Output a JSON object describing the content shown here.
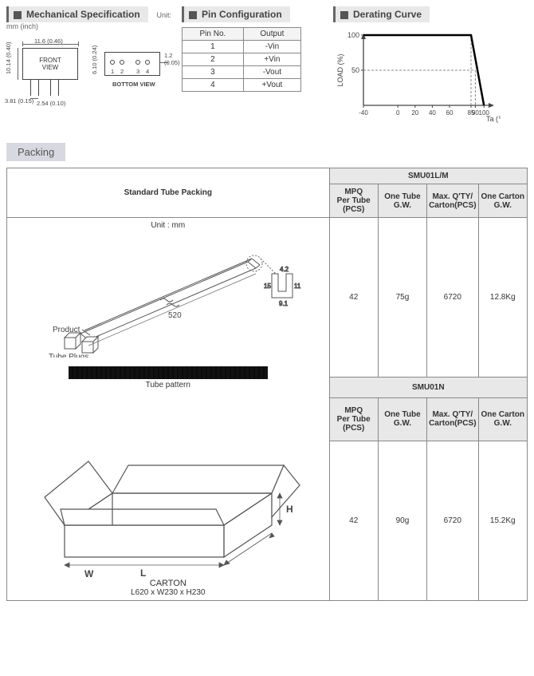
{
  "sections": {
    "mech_spec": "Mechanical Specification",
    "pin_config": "Pin Configuration",
    "derating": "Derating Curve",
    "packing": "Packing"
  },
  "mech": {
    "unit_label": "Unit: mm (inch)",
    "front_label": "FRONT\nVIEW",
    "bottom_label": "BOTTOM VIEW",
    "dims": {
      "width": "11.6 (0.46)",
      "height": "10.14 (0.40)",
      "pin_drop": "3.81 (0.15)",
      "pin_pitch": "2.54 (0.10)",
      "thickness": "6.10 (0.24)",
      "lead_dia": "1.2 (0.05)"
    },
    "pin_numbers": [
      "1",
      "2",
      "3",
      "4"
    ]
  },
  "pin_table": {
    "headers": [
      "Pin No.",
      "Output"
    ],
    "rows": [
      [
        "1",
        "-Vin"
      ],
      [
        "2",
        "+Vin"
      ],
      [
        "3",
        "-Vout"
      ],
      [
        "4",
        "+Vout"
      ]
    ]
  },
  "derating_chart": {
    "type": "line",
    "ylabel": "LOAD (%)",
    "xlabel": "Ta (℃)",
    "ylim": [
      0,
      100
    ],
    "xlim": [
      -40,
      110
    ],
    "xticks": [
      -40,
      0,
      20,
      40,
      60,
      85,
      90,
      100
    ],
    "yticks": [
      50,
      100
    ],
    "dash_vx": [
      85,
      90
    ],
    "dash_hy": 50,
    "line_points": [
      [
        -40,
        100
      ],
      [
        85,
        100
      ],
      [
        100,
        0
      ]
    ],
    "line_color": "#000000",
    "line_width": 2.5,
    "dash_color": "#888888",
    "axis_color": "#444444",
    "label_fontsize": 9
  },
  "packing": {
    "std_title": "Standard Tube Packing",
    "unit_note": "Unit : mm",
    "cols": [
      "MPQ\nPer Tube\n(PCS)",
      "One Tube\nG.W.",
      "Max. Q'TY/\nCarton(PCS)",
      "One Carton\nG.W."
    ],
    "groups": [
      {
        "name": "SMU01L/M",
        "values": [
          "42",
          "75g",
          "6720",
          "12.8Kg"
        ]
      },
      {
        "name": "SMU01N",
        "values": [
          "42",
          "90g",
          "6720",
          "15.2Kg"
        ]
      }
    ],
    "tube": {
      "length": "520",
      "profile_w": "9.1",
      "profile_h": "15",
      "inner_w": "4.2",
      "inner_h": "11",
      "label_product": "Product",
      "label_plugs": "Tube Plugs",
      "label_pattern": "Tube  pattern"
    },
    "carton": {
      "label": "CARTON",
      "dims": "L620 x W230 x H230",
      "L": "L",
      "W": "W",
      "H": "H"
    }
  },
  "colors": {
    "header_bg": "#e8e8e8",
    "border": "#888888",
    "text": "#333333"
  }
}
